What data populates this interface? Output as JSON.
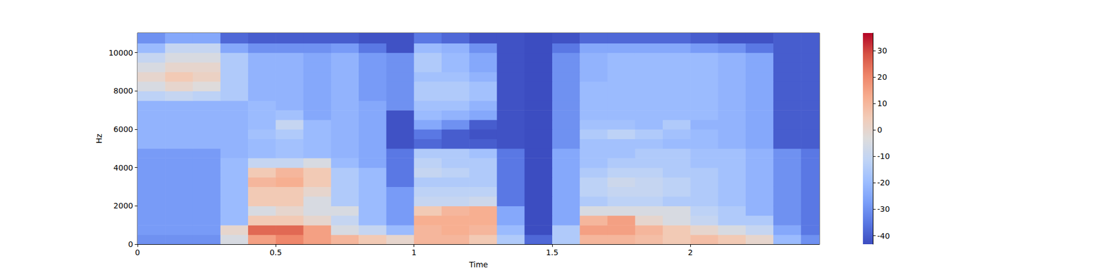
{
  "chart_data": {
    "type": "heatmap",
    "xlabel": "Time",
    "ylabel": "Hz",
    "xlim": [
      0,
      2.467
    ],
    "ylim": [
      0,
      11025
    ],
    "xticks": [
      0,
      0.5,
      1,
      1.5,
      2
    ],
    "yticks": [
      0,
      2000,
      4000,
      6000,
      8000,
      10000
    ],
    "time_bins": [
      0,
      0.1,
      0.2,
      0.3,
      0.4,
      0.5,
      0.6,
      0.7,
      0.8,
      0.9,
      1.0,
      1.1,
      1.2,
      1.3,
      1.4,
      1.5,
      1.6,
      1.7,
      1.8,
      1.9,
      2.0,
      2.1,
      2.2,
      2.3,
      2.4,
      2.5
    ],
    "freq_bins": [
      0,
      500,
      1000,
      1500,
      2000,
      2500,
      3000,
      3500,
      4000,
      4500,
      5000,
      5500,
      6000,
      6500,
      7000,
      7500,
      8000,
      8500,
      9000,
      9500,
      10000,
      10500,
      11025
    ],
    "cells": [
      [
        -30,
        -30,
        -30,
        -5,
        15,
        20,
        15,
        10,
        5,
        0,
        10,
        10,
        5,
        -15,
        -38,
        -15,
        10,
        10,
        8,
        5,
        8,
        5,
        0,
        -20,
        -30
      ],
      [
        -28,
        -28,
        -28,
        0,
        25,
        25,
        15,
        -5,
        -10,
        -20,
        10,
        12,
        10,
        -20,
        -43,
        -15,
        15,
        15,
        10,
        5,
        0,
        -5,
        -10,
        -25,
        -35
      ],
      [
        -28,
        -28,
        -28,
        -20,
        5,
        5,
        0,
        -10,
        -20,
        -28,
        12,
        12,
        12,
        -25,
        -43,
        -25,
        10,
        15,
        0,
        -5,
        -10,
        -15,
        -15,
        -30,
        -35
      ],
      [
        -28,
        -28,
        -28,
        -20,
        -5,
        0,
        -5,
        -5,
        -20,
        -28,
        5,
        10,
        12,
        -25,
        -43,
        -25,
        -5,
        -5,
        -5,
        -5,
        -12,
        -15,
        -22,
        -30,
        -35
      ],
      [
        -28,
        -28,
        -28,
        -20,
        5,
        5,
        -5,
        -15,
        -20,
        -28,
        -10,
        -10,
        -8,
        -35,
        -43,
        -25,
        -15,
        -12,
        -12,
        -15,
        -15,
        -18,
        -22,
        -30,
        -35
      ],
      [
        -28,
        -28,
        -28,
        -20,
        5,
        5,
        0,
        -15,
        -20,
        -28,
        -12,
        -12,
        -12,
        -35,
        -43,
        -25,
        -12,
        -10,
        -10,
        -12,
        -15,
        -18,
        -22,
        -30,
        -35
      ],
      [
        -28,
        -28,
        -28,
        -20,
        10,
        12,
        5,
        -15,
        -20,
        -35,
        -15,
        -15,
        -15,
        -35,
        -43,
        -25,
        -12,
        -8,
        -10,
        -12,
        -15,
        -18,
        -22,
        -30,
        -35
      ],
      [
        -28,
        -28,
        -28,
        -20,
        5,
        10,
        5,
        -15,
        -20,
        -35,
        -10,
        -12,
        -15,
        -35,
        -43,
        -25,
        -15,
        -12,
        -12,
        -15,
        -15,
        -18,
        -22,
        -30,
        -35
      ],
      [
        -28,
        -28,
        -28,
        -20,
        -10,
        -10,
        -5,
        -20,
        -25,
        -35,
        -12,
        -15,
        -15,
        -35,
        -43,
        -25,
        -18,
        -15,
        -15,
        -15,
        -18,
        -18,
        -22,
        -30,
        -35
      ],
      [
        -28,
        -28,
        -28,
        -22,
        -20,
        -18,
        -20,
        -22,
        -25,
        -35,
        -15,
        -15,
        -18,
        -35,
        -43,
        -25,
        -18,
        -18,
        -15,
        -15,
        -18,
        -18,
        -22,
        -30,
        -35
      ],
      [
        -22,
        -22,
        -22,
        -22,
        -20,
        -18,
        -20,
        -22,
        -25,
        -42,
        -38,
        -40,
        -40,
        -42,
        -43,
        -30,
        -18,
        -18,
        -18,
        -20,
        -20,
        -22,
        -25,
        -40,
        -40
      ],
      [
        -22,
        -22,
        -22,
        -22,
        -18,
        -15,
        -20,
        -22,
        -25,
        -42,
        -35,
        -40,
        -42,
        -42,
        -43,
        -30,
        -15,
        -12,
        -15,
        -18,
        -20,
        -22,
        -25,
        -40,
        -40
      ],
      [
        -22,
        -22,
        -22,
        -22,
        -20,
        -10,
        -20,
        -22,
        -25,
        -42,
        -25,
        -30,
        -40,
        -42,
        -43,
        -30,
        -18,
        -18,
        -20,
        -15,
        -22,
        -22,
        -25,
        -40,
        -40
      ],
      [
        -22,
        -22,
        -22,
        -22,
        -20,
        -18,
        -25,
        -22,
        -25,
        -42,
        -20,
        -22,
        -25,
        -42,
        -43,
        -30,
        -20,
        -20,
        -20,
        -20,
        -20,
        -22,
        -25,
        -40,
        -40
      ],
      [
        -22,
        -22,
        -22,
        -22,
        -20,
        -22,
        -25,
        -22,
        -25,
        -30,
        -18,
        -18,
        -22,
        -42,
        -43,
        -30,
        -20,
        -20,
        -20,
        -20,
        -20,
        -22,
        -25,
        -40,
        -40
      ],
      [
        -12,
        -10,
        -12,
        -15,
        -22,
        -22,
        -25,
        -22,
        -28,
        -30,
        -15,
        -15,
        -18,
        -42,
        -43,
        -30,
        -20,
        -20,
        -20,
        -20,
        -20,
        -22,
        -25,
        -40,
        -40
      ],
      [
        -5,
        0,
        -3,
        -15,
        -22,
        -22,
        -25,
        -22,
        -28,
        -30,
        -15,
        -15,
        -18,
        -42,
        -43,
        -30,
        -20,
        -20,
        -20,
        -20,
        -20,
        -22,
        -25,
        -40,
        -40
      ],
      [
        0,
        5,
        2,
        -15,
        -22,
        -22,
        -25,
        -22,
        -28,
        -30,
        -18,
        -18,
        -22,
        -42,
        -43,
        -30,
        -22,
        -20,
        -20,
        -20,
        -20,
        -22,
        -25,
        -40,
        -40
      ],
      [
        -5,
        0,
        0,
        -15,
        -22,
        -22,
        -25,
        -22,
        -28,
        -30,
        -15,
        -20,
        -25,
        -42,
        -43,
        -30,
        -22,
        -20,
        -20,
        -20,
        -20,
        -22,
        -25,
        -40,
        -40
      ],
      [
        -10,
        -5,
        -5,
        -15,
        -22,
        -22,
        -25,
        -22,
        -28,
        -30,
        -15,
        -20,
        -25,
        -42,
        -43,
        -30,
        -22,
        -20,
        -20,
        -20,
        -20,
        -22,
        -25,
        -40,
        -40
      ],
      [
        -20,
        -10,
        -10,
        -25,
        -30,
        -30,
        -30,
        -28,
        -35,
        -42,
        -20,
        -22,
        -30,
        -42,
        -43,
        -35,
        -25,
        -25,
        -25,
        -25,
        -28,
        -30,
        -35,
        -40,
        -40
      ],
      [
        -30,
        -25,
        -25,
        -38,
        -40,
        -40,
        -40,
        -40,
        -42,
        -42,
        -35,
        -38,
        -42,
        -42,
        -43,
        -42,
        -38,
        -38,
        -38,
        -38,
        -40,
        -42,
        -42,
        -40,
        -40
      ]
    ],
    "colorbar": {
      "range": [
        -43.2,
        36.6
      ],
      "ticks": [
        -40,
        -30,
        -20,
        -10,
        0,
        10,
        20,
        30
      ]
    }
  }
}
